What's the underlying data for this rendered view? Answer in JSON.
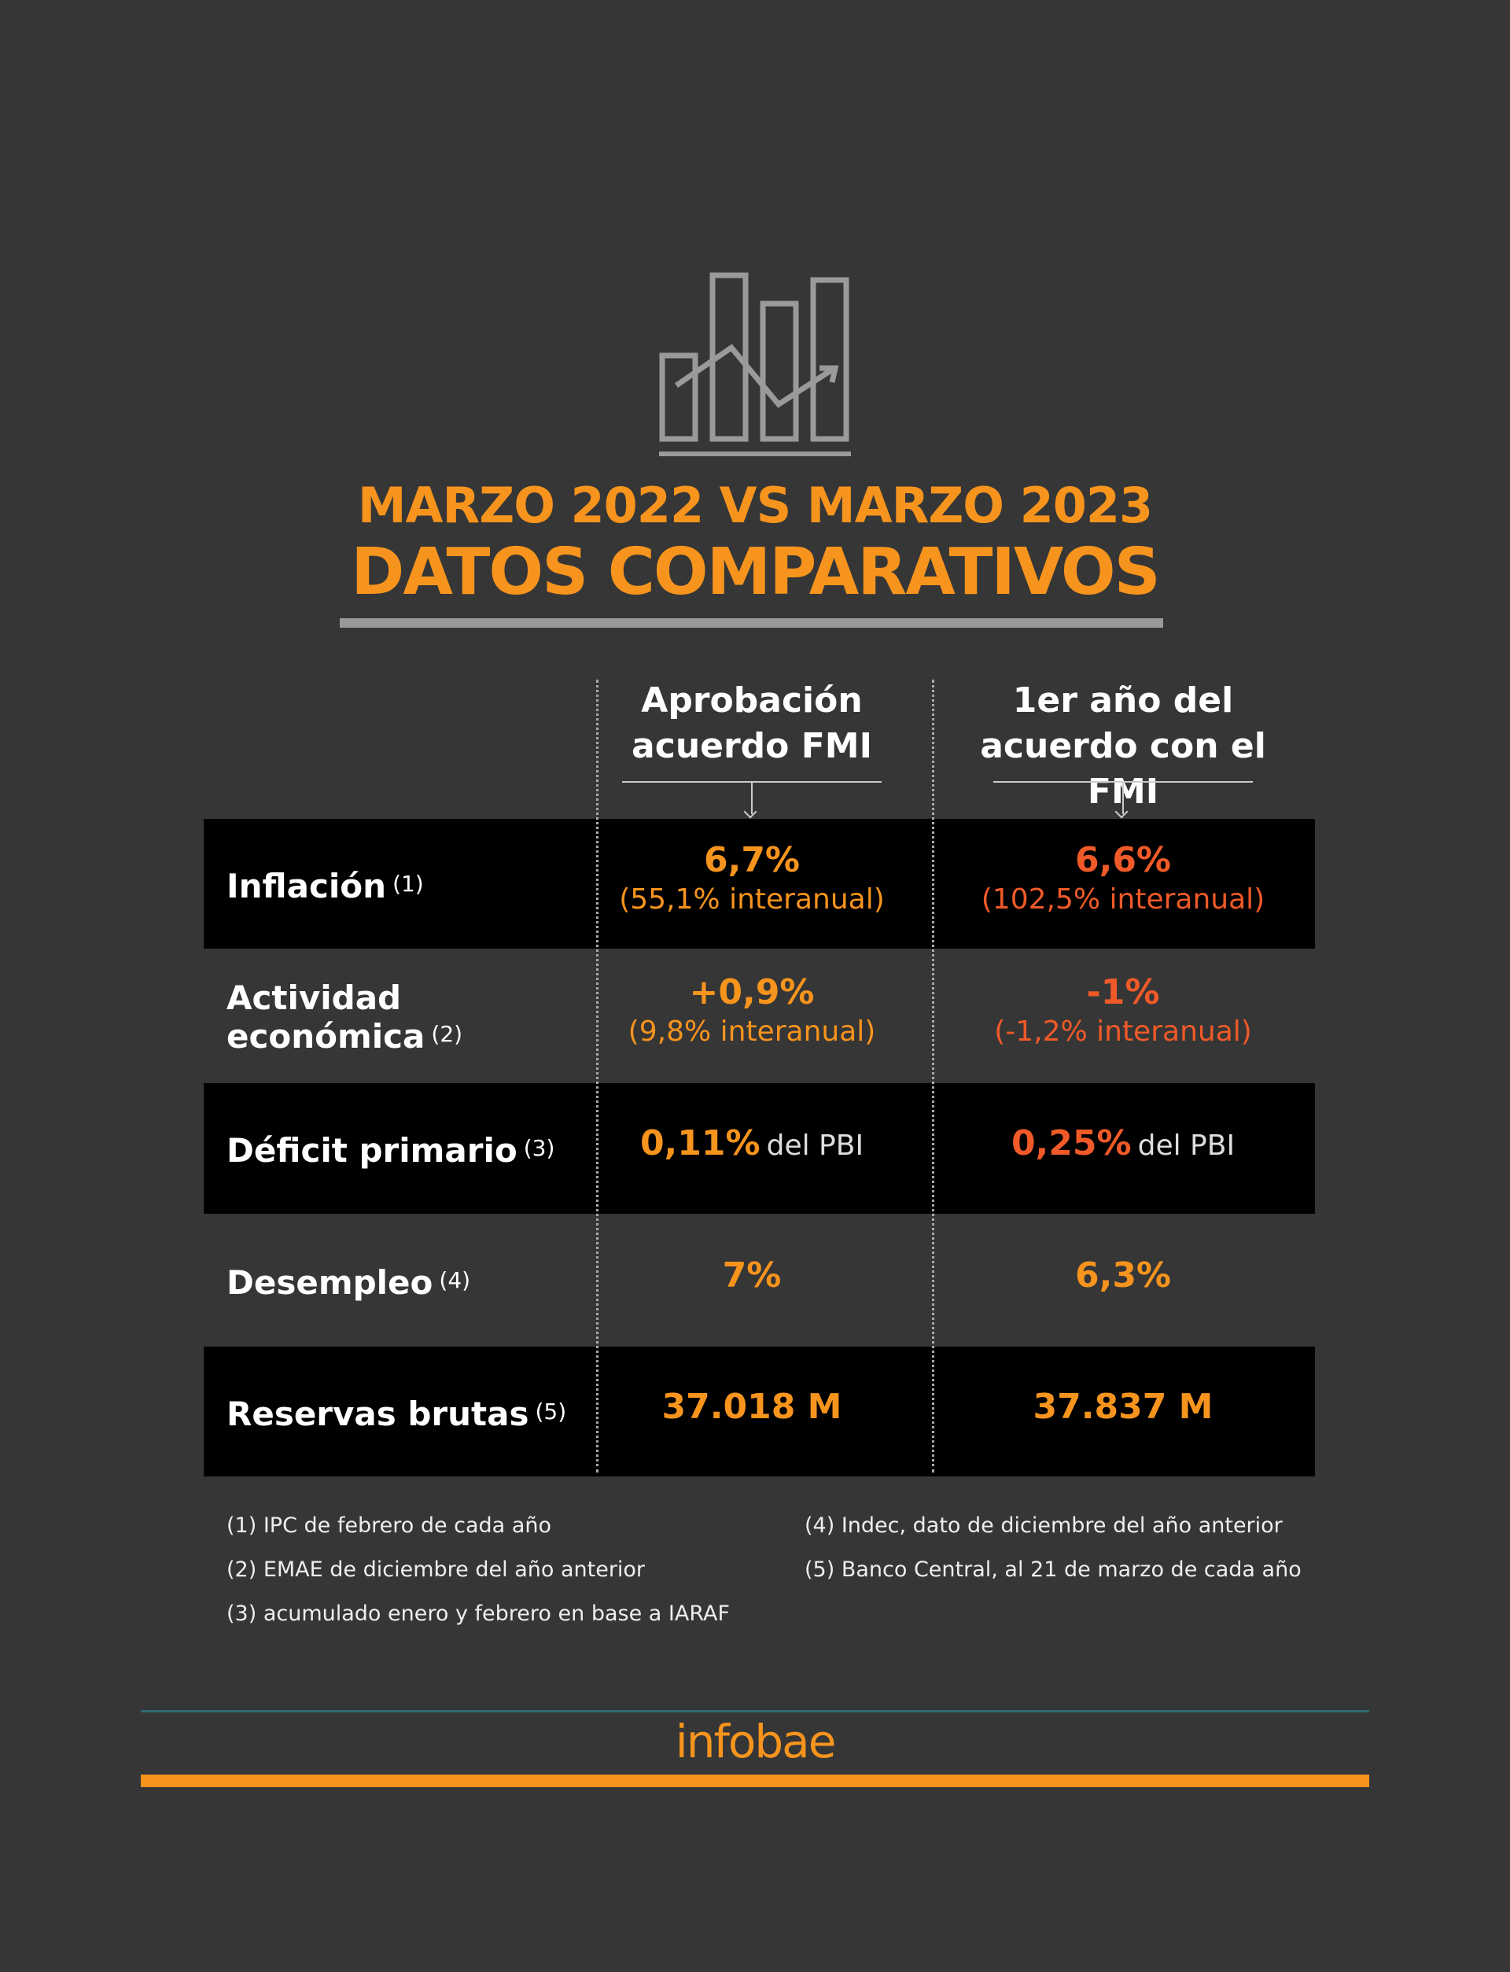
{
  "header": {
    "title": "MARZO 2022 VS MARZO 2023",
    "subtitle": "DATOS COMPARATIVOS"
  },
  "table": {
    "columns": [
      {
        "lines": [
          "Aprobación",
          "acuerdo FMI"
        ]
      },
      {
        "lines": [
          "1er año del",
          "acuerdo con el FMI"
        ]
      }
    ],
    "rows": [
      {
        "lines": [
          "Inflación"
        ],
        "note": "(1)",
        "dark": true,
        "cells": [
          {
            "main": "6,7%",
            "sub": "(55,1% interanual)",
            "color": "#f7941d"
          },
          {
            "main": "6,6%",
            "sub": "(102,5% interanual)",
            "color": "#f05a28"
          }
        ]
      },
      {
        "lines": [
          "Actividad",
          "económica"
        ],
        "note": "(2)",
        "dark": false,
        "cells": [
          {
            "main": "+0,9%",
            "sub": "(9,8% interanual)",
            "color": "#f7941d"
          },
          {
            "main": "-1%",
            "sub": "(-1,2% interanual)",
            "color": "#f05a28"
          }
        ]
      },
      {
        "lines": [
          "Déficit primario"
        ],
        "note": "(3)",
        "dark": true,
        "cells": [
          {
            "main": "0,11%",
            "suffix": "del PBI",
            "color": "#f7941d"
          },
          {
            "main": "0,25%",
            "suffix": "del PBI",
            "color": "#f05a28"
          }
        ]
      },
      {
        "lines": [
          "Desempleo"
        ],
        "note": "(4)",
        "dark": false,
        "cells": [
          {
            "main": "7%",
            "color": "#f7941d"
          },
          {
            "main": "6,3%",
            "color": "#f7941d"
          }
        ]
      },
      {
        "lines": [
          "Reservas brutas"
        ],
        "note": "(5)",
        "dark": true,
        "cells": [
          {
            "main": "37.018 M",
            "color": "#f7941d"
          },
          {
            "main": "37.837 M",
            "color": "#f7941d"
          }
        ]
      }
    ]
  },
  "footnotes": [
    [
      "(1) IPC de febrero de cada año",
      "(2) EMAE de diciembre del año anterior",
      "(3) acumulado enero y febrero en base a IARAF"
    ],
    [
      "(4) Indec, dato de diciembre del año anterior",
      "(5) Banco Central, al 21 de marzo de cada año"
    ]
  ],
  "footer": {
    "logo": "infobae"
  }
}
